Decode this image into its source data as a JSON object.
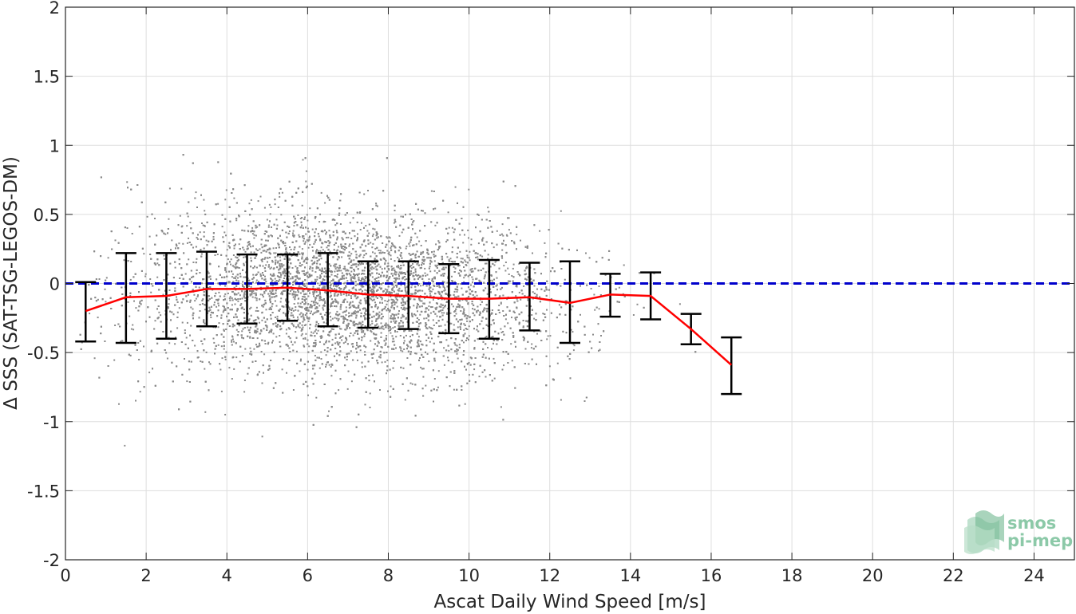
{
  "chart_data": {
    "type": "scatter",
    "xlabel": "Ascat Daily Wind Speed [m/s]",
    "ylabel": "Δ SSS (SAT-TSG-LEGOS-DM)",
    "xlim": [
      0,
      25
    ],
    "ylim": [
      -2,
      2
    ],
    "x_ticks": [
      "0",
      "2",
      "4",
      "6",
      "8",
      "10",
      "12",
      "14",
      "16",
      "18",
      "20",
      "22",
      "24"
    ],
    "y_ticks": [
      "2",
      "1.5",
      "1",
      "0.5",
      "0",
      "-0.5",
      "-1",
      "-1.5",
      "-2"
    ],
    "grid": true,
    "reference_line": {
      "y": 0,
      "style": "dashed",
      "color": "#0000cc"
    },
    "scatter_color": "#8a8a8a",
    "scatter_cloud": {
      "description_values": "dense gray scatter of individual match-ups",
      "x_range": [
        0.3,
        16.5
      ],
      "center_x": 7,
      "center_y": -0.08
    },
    "binned_mean": {
      "color": "#ff0000",
      "x": [
        0.5,
        1.5,
        2.5,
        3.5,
        4.5,
        5.5,
        6.5,
        7.5,
        8.5,
        9.5,
        10.5,
        11.5,
        12.5,
        13.5,
        14.5,
        15.5,
        16.5
      ],
      "y": [
        -0.2,
        -0.1,
        -0.09,
        -0.04,
        -0.04,
        -0.03,
        -0.05,
        -0.08,
        -0.09,
        -0.11,
        -0.11,
        -0.1,
        -0.14,
        -0.08,
        -0.09,
        -0.33,
        -0.59
      ]
    },
    "error_bars": {
      "color": "#000000",
      "x": [
        0.5,
        1.5,
        2.5,
        3.5,
        4.5,
        5.5,
        6.5,
        7.5,
        8.5,
        9.5,
        10.5,
        11.5,
        12.5,
        13.5,
        14.5,
        15.5,
        16.5
      ],
      "upper": [
        0.01,
        0.22,
        0.22,
        0.23,
        0.21,
        0.21,
        0.22,
        0.16,
        0.16,
        0.14,
        0.17,
        0.15,
        0.16,
        0.07,
        0.08,
        -0.22,
        -0.39
      ],
      "lower": [
        -0.42,
        -0.43,
        -0.4,
        -0.31,
        -0.29,
        -0.27,
        -0.31,
        -0.32,
        -0.33,
        -0.36,
        -0.4,
        -0.34,
        -0.43,
        -0.24,
        -0.26,
        -0.44,
        -0.8
      ]
    }
  },
  "logo": {
    "line1": "smos",
    "line2": "pi-mep",
    "color": "#8cc9a8"
  }
}
